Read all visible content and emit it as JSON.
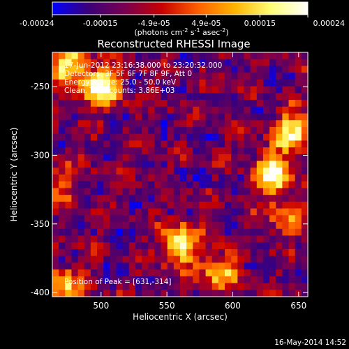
{
  "chart_data": {
    "type": "heatmap",
    "title": "Reconstructed RHESSI Image",
    "xlabel": "Heliocentric X (arcsec)",
    "ylabel": "Heliocentric Y (arcsec)",
    "xlim": [
      463,
      657
    ],
    "ylim": [
      -403,
      -225
    ],
    "x_ticks": [
      500,
      550,
      600,
      650
    ],
    "y_ticks": [
      -400,
      -350,
      -300,
      -250
    ],
    "colorbar": {
      "range": [
        -0.00024,
        0.00024
      ],
      "tick_values": [
        -0.00024,
        -0.00015,
        -4.9e-05,
        4.9e-05,
        0.00015,
        0.00024
      ],
      "tick_labels": [
        "-0.00024",
        "-0.00015",
        "-4.9e-05",
        "4.9e-05",
        "0.00015",
        "0.00024"
      ],
      "units_label": "(photons cm",
      "units_sup1": "-2",
      "units_mid": " s",
      "units_sup2": "-1",
      "units_mid2": " asec",
      "units_sup3": "-2",
      "units_end": ")"
    },
    "colors": [
      "#0000ff",
      "#3c0078",
      "#7a0050",
      "#c80000",
      "#ff6000",
      "#ffb400",
      "#ffff78",
      "#ffffff"
    ],
    "annotations": [
      "17-Jun-2012 23:16:38.000 to 23:20:32.000",
      "Detectors: 3F 5F 6F 7F 8F 9F, Att 0",
      "Energy Range: 25.0 - 50.0 keV",
      "Clean.  Total counts: 3.86E+03"
    ],
    "peak_label": "Position of Peak = [631,-314]",
    "peak": [
      631,
      -314
    ],
    "sources": [
      {
        "x": 500,
        "y": -250,
        "intensity": 0.00024
      },
      {
        "x": 475,
        "y": -235,
        "intensity": 0.00018
      },
      {
        "x": 645,
        "y": -283,
        "intensity": 0.0002
      },
      {
        "x": 631,
        "y": -314,
        "intensity": 0.00024
      },
      {
        "x": 560,
        "y": -365,
        "intensity": 0.00021
      },
      {
        "x": 590,
        "y": -385,
        "intensity": 0.00015
      },
      {
        "x": 470,
        "y": -395,
        "intensity": 0.00016
      },
      {
        "x": 640,
        "y": -345,
        "intensity": 0.0001
      },
      {
        "x": 470,
        "y": -320,
        "intensity": 8e-05
      }
    ]
  },
  "footer": {
    "timestamp": "16-May-2014 14:52"
  }
}
